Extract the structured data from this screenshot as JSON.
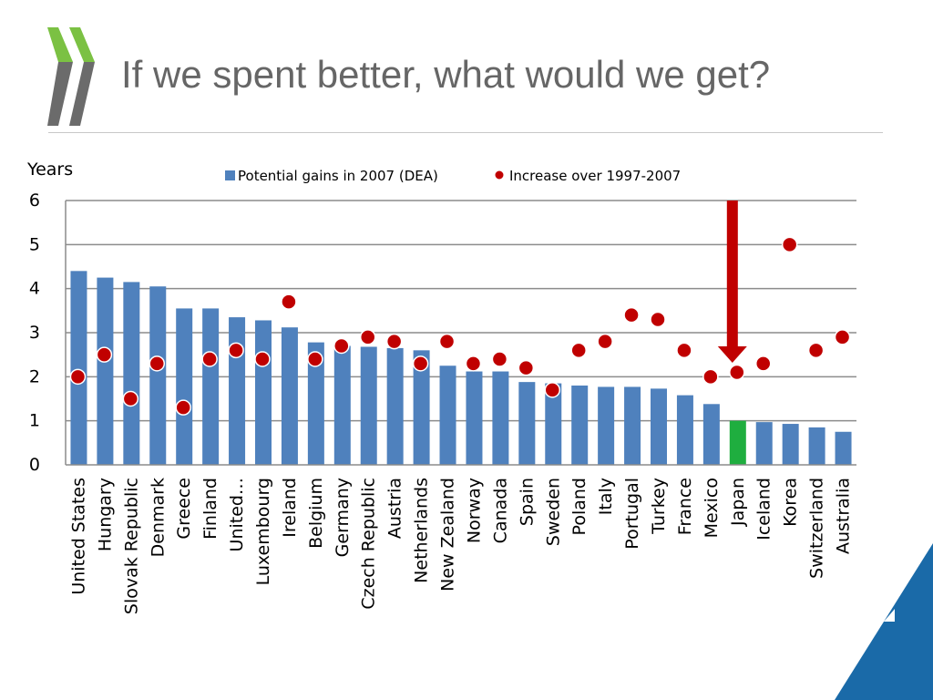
{
  "slide": {
    "title": "If we spent better, what would we get?"
  },
  "colors": {
    "bar": "#4f81bd",
    "highlight_bar": "#1fae3f",
    "dot": "#c00000",
    "dot_outline": "#ffffff",
    "arrow": "#c00000",
    "logo": "#7bc143",
    "corner": "#1a6aa8",
    "gridline": "#8c8c8c"
  },
  "icons": {
    "logo": "oecd-chevron-logo",
    "arrow": "down-arrow-marker",
    "corner": "corner-triangle-decoration"
  },
  "chart_data": {
    "type": "bar",
    "ylabel": "Years",
    "ylim": [
      0,
      6
    ],
    "yticks": [
      0,
      1,
      2,
      3,
      4,
      5,
      6
    ],
    "grid": true,
    "legend_position": "top",
    "categories": [
      "United States",
      "Hungary",
      "Slovak Republic",
      "Denmark",
      "Greece",
      "Finland",
      "United…",
      "Luxembourg",
      "Ireland",
      "Belgium",
      "Germany",
      "Czech Republic",
      "Austria",
      "Netherlands",
      "New Zealand",
      "Norway",
      "Canada",
      "Spain",
      "Sweden",
      "Poland",
      "Italy",
      "Portugal",
      "Turkey",
      "France",
      "Mexico",
      "Japan",
      "Iceland",
      "Korea",
      "Switzerland",
      "Australia"
    ],
    "highlight_category": "Japan",
    "series": [
      {
        "name": "Potential gains in 2007 (DEA)",
        "kind": "bar",
        "values": [
          4.4,
          4.25,
          4.15,
          4.05,
          3.55,
          3.55,
          3.35,
          3.28,
          3.12,
          2.78,
          2.7,
          2.68,
          2.65,
          2.6,
          2.25,
          2.12,
          2.12,
          1.88,
          1.85,
          1.8,
          1.77,
          1.77,
          1.73,
          1.58,
          1.38,
          1.0,
          0.97,
          0.93,
          0.85,
          0.75
        ]
      },
      {
        "name": "Increase over 1997-2007",
        "kind": "dot",
        "values": [
          2.0,
          2.5,
          1.5,
          2.3,
          1.3,
          2.4,
          2.6,
          2.4,
          3.7,
          2.4,
          2.7,
          2.9,
          2.8,
          2.3,
          2.8,
          2.3,
          2.4,
          2.2,
          1.7,
          2.6,
          2.8,
          3.4,
          3.3,
          2.6,
          2.0,
          2.1,
          2.3,
          5.0,
          2.6,
          2.9
        ]
      }
    ]
  }
}
